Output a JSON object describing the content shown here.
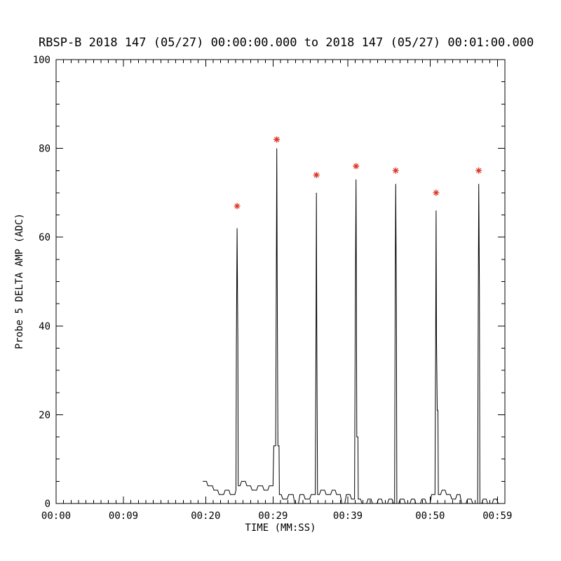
{
  "page": {
    "background": "#ffffff"
  },
  "chart_data": {
    "type": "line",
    "title": "RBSP-B 2018 147 (05/27) 00:00:00.000 to 2018 147 (05/27) 00:01:00.000",
    "xlabel": "TIME (MM:SS)",
    "ylabel": "Probe 5 DELTA AMP (ADC)",
    "ylim": [
      0,
      100
    ],
    "xlim_seconds": [
      0,
      60
    ],
    "y_major_ticks": [
      0,
      20,
      40,
      60,
      80,
      100
    ],
    "y_minor_step": 5,
    "x_minor_step": 1,
    "x_ticks": [
      {
        "seconds": 0,
        "label": "00:00"
      },
      {
        "seconds": 9,
        "label": "00:09"
      },
      {
        "seconds": 20,
        "label": "00:20"
      },
      {
        "seconds": 29,
        "label": "00:29"
      },
      {
        "seconds": 39,
        "label": "00:39"
      },
      {
        "seconds": 50,
        "label": "00:50"
      },
      {
        "seconds": 59,
        "label": "00:59"
      }
    ],
    "grid": false,
    "legend": "none",
    "line_color": "#000000",
    "marker_color": "#dd3322",
    "marker_style": "asterisk",
    "peak_markers": [
      [
        24.2,
        67
      ],
      [
        29.5,
        82
      ],
      [
        34.8,
        74
      ],
      [
        40.1,
        76
      ],
      [
        45.4,
        75
      ],
      [
        50.8,
        70
      ],
      [
        56.5,
        75
      ]
    ],
    "series": [
      {
        "name": "Probe 5 DELTA AMP",
        "points": [
          [
            19.6,
            5
          ],
          [
            20.1,
            5
          ],
          [
            20.3,
            4
          ],
          [
            20.9,
            4
          ],
          [
            21.1,
            3
          ],
          [
            21.6,
            3
          ],
          [
            21.8,
            2
          ],
          [
            22.4,
            2
          ],
          [
            22.6,
            3
          ],
          [
            23.1,
            3
          ],
          [
            23.3,
            2
          ],
          [
            23.9,
            2
          ],
          [
            24.05,
            3
          ],
          [
            24.1,
            36
          ],
          [
            24.2,
            62
          ],
          [
            24.3,
            36
          ],
          [
            24.35,
            4
          ],
          [
            24.6,
            4
          ],
          [
            24.8,
            5
          ],
          [
            25.3,
            5
          ],
          [
            25.5,
            4
          ],
          [
            26.0,
            4
          ],
          [
            26.2,
            3
          ],
          [
            26.8,
            3
          ],
          [
            27.0,
            4
          ],
          [
            27.6,
            4
          ],
          [
            27.8,
            3
          ],
          [
            28.3,
            3
          ],
          [
            28.5,
            4
          ],
          [
            29.0,
            4
          ],
          [
            29.1,
            13
          ],
          [
            29.35,
            13
          ],
          [
            29.45,
            54
          ],
          [
            29.5,
            80
          ],
          [
            29.55,
            54
          ],
          [
            29.65,
            13
          ],
          [
            29.8,
            13
          ],
          [
            29.85,
            2
          ],
          [
            30.1,
            2
          ],
          [
            30.3,
            1
          ],
          [
            30.9,
            1
          ],
          [
            31.1,
            2
          ],
          [
            31.7,
            2
          ],
          [
            31.9,
            0
          ],
          [
            32.4,
            0
          ],
          [
            32.6,
            2
          ],
          [
            33.1,
            2
          ],
          [
            33.3,
            1
          ],
          [
            33.9,
            1
          ],
          [
            34.1,
            2
          ],
          [
            34.5,
            2
          ],
          [
            34.65,
            2
          ],
          [
            34.75,
            41
          ],
          [
            34.8,
            70
          ],
          [
            34.85,
            41
          ],
          [
            34.95,
            2
          ],
          [
            35.2,
            2
          ],
          [
            35.4,
            3
          ],
          [
            35.9,
            3
          ],
          [
            36.1,
            2
          ],
          [
            36.7,
            2
          ],
          [
            36.9,
            3
          ],
          [
            37.3,
            3
          ],
          [
            37.5,
            2
          ],
          [
            38.0,
            2
          ],
          [
            38.2,
            0
          ],
          [
            38.6,
            0
          ],
          [
            38.8,
            2
          ],
          [
            39.3,
            2
          ],
          [
            39.5,
            1
          ],
          [
            39.9,
            1
          ],
          [
            40.0,
            45
          ],
          [
            40.1,
            73
          ],
          [
            40.15,
            45
          ],
          [
            40.2,
            15
          ],
          [
            40.35,
            15
          ],
          [
            40.4,
            1
          ],
          [
            40.7,
            1
          ],
          [
            40.9,
            0
          ],
          [
            41.5,
            0
          ],
          [
            41.7,
            1
          ],
          [
            42.1,
            1
          ],
          [
            42.3,
            0
          ],
          [
            42.9,
            0
          ],
          [
            43.1,
            1
          ],
          [
            43.5,
            1
          ],
          [
            43.7,
            0
          ],
          [
            44.3,
            0
          ],
          [
            44.5,
            1
          ],
          [
            44.9,
            1
          ],
          [
            45.1,
            0
          ],
          [
            45.25,
            0
          ],
          [
            45.35,
            53
          ],
          [
            45.4,
            72
          ],
          [
            45.5,
            44
          ],
          [
            45.55,
            0
          ],
          [
            45.8,
            0
          ],
          [
            46.0,
            1
          ],
          [
            46.5,
            1
          ],
          [
            46.7,
            0
          ],
          null,
          [
            47.3,
            0
          ],
          [
            47.5,
            1
          ],
          [
            47.9,
            1
          ],
          [
            48.1,
            0
          ],
          null,
          [
            48.7,
            0
          ],
          [
            48.9,
            1
          ],
          [
            49.3,
            1
          ],
          [
            49.5,
            0
          ],
          [
            50.0,
            0
          ],
          [
            50.2,
            2
          ],
          [
            50.5,
            2
          ],
          [
            50.65,
            2
          ],
          [
            50.75,
            38
          ],
          [
            50.8,
            66
          ],
          [
            50.85,
            38
          ],
          [
            50.95,
            21
          ],
          [
            51.05,
            21
          ],
          [
            51.1,
            2
          ],
          [
            51.4,
            2
          ],
          [
            51.6,
            3
          ],
          [
            52.0,
            3
          ],
          [
            52.2,
            2
          ],
          [
            52.7,
            2
          ],
          [
            52.9,
            1
          ],
          [
            53.4,
            1
          ],
          [
            53.6,
            2
          ],
          [
            54.0,
            2
          ],
          [
            54.2,
            0
          ],
          null,
          [
            54.8,
            0
          ],
          [
            55.0,
            1
          ],
          [
            55.5,
            1
          ],
          [
            55.7,
            0
          ],
          [
            56.1,
            0
          ],
          [
            56.35,
            0
          ],
          [
            56.45,
            48
          ],
          [
            56.5,
            72
          ],
          [
            56.6,
            48
          ],
          [
            56.65,
            0
          ],
          [
            56.9,
            0
          ],
          [
            57.1,
            1
          ],
          [
            57.5,
            1
          ],
          [
            57.7,
            0
          ],
          null,
          [
            58.3,
            0
          ],
          [
            58.5,
            1
          ],
          [
            58.9,
            1
          ],
          [
            59.1,
            0
          ],
          [
            59.4,
            0
          ]
        ]
      }
    ]
  }
}
